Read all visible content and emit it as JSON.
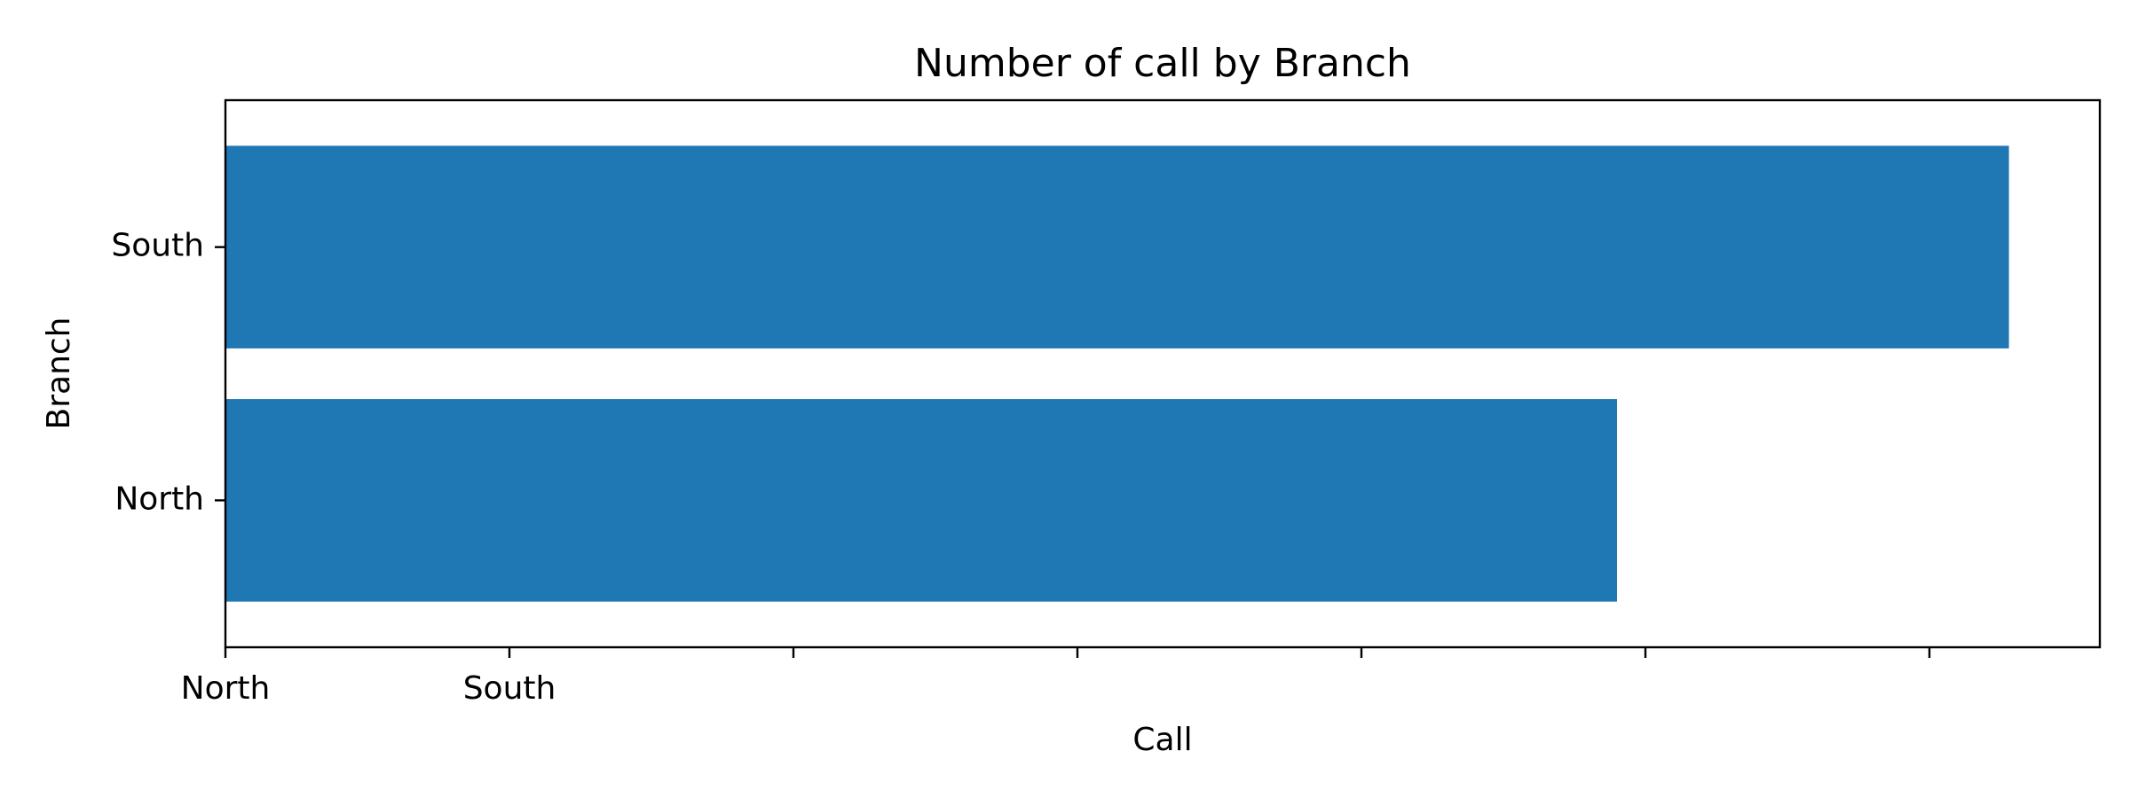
{
  "chart_data": {
    "type": "bar",
    "orientation": "horizontal",
    "title": "Number of call by Branch",
    "xlabel": "Call",
    "ylabel": "Branch",
    "categories": [
      "North",
      "South"
    ],
    "values": [
      4.9,
      6.28
    ],
    "xlim": [
      0,
      6.6
    ],
    "x_ticks": [
      0,
      1,
      2,
      3,
      4,
      5,
      6
    ],
    "x_tick_labels": [
      "North",
      "South",
      "",
      "",
      "",
      "",
      ""
    ],
    "grid": false,
    "legend": "none",
    "bar_color": "#1f77b4"
  }
}
